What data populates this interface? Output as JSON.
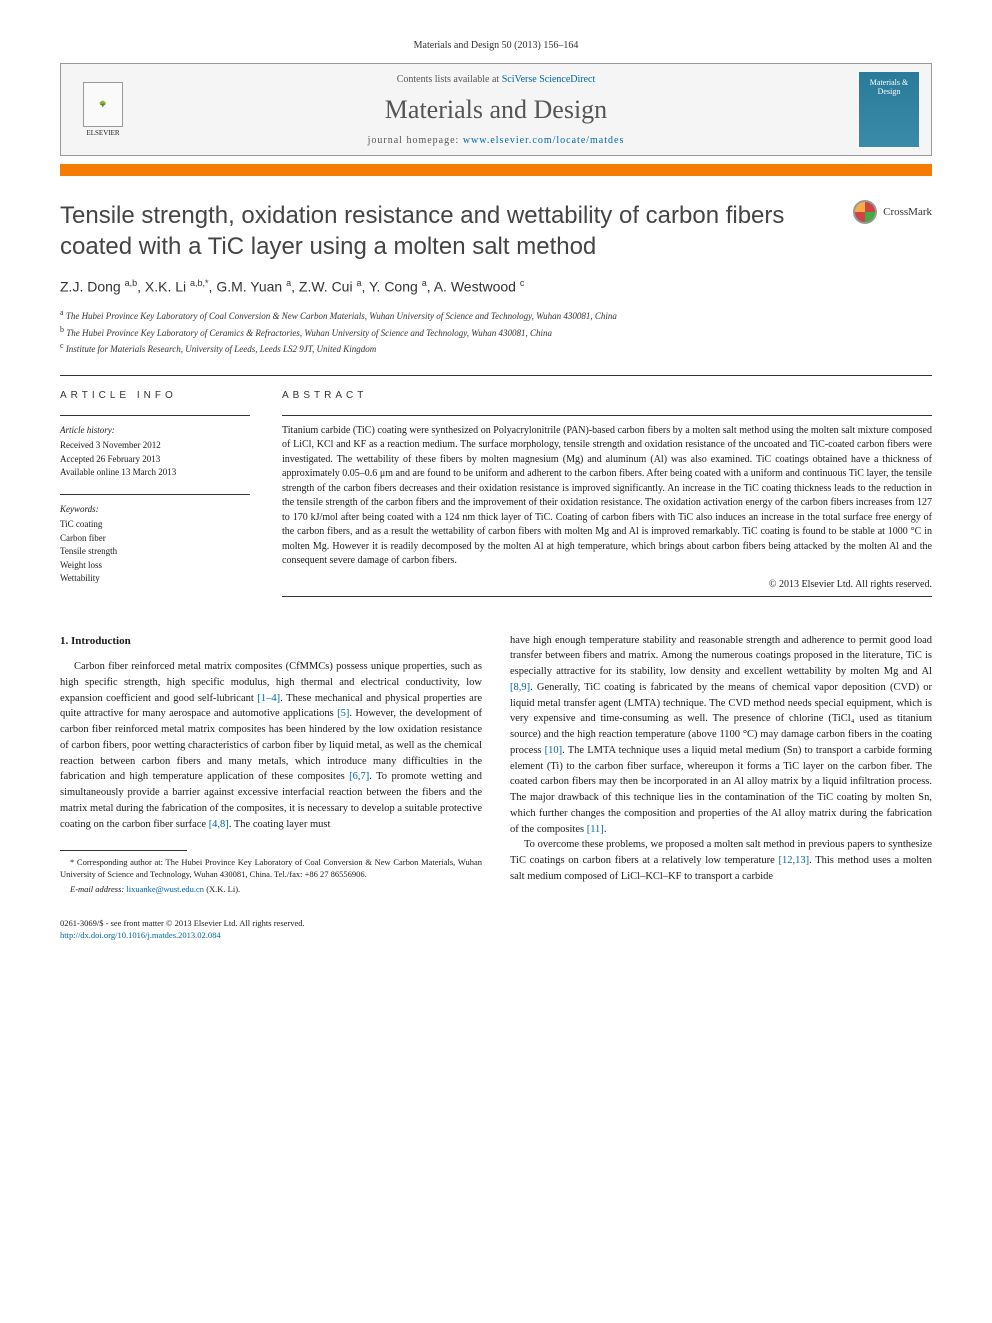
{
  "citation": "Materials and Design 50 (2013) 156–164",
  "header": {
    "contents_prefix": "Contents lists available at ",
    "contents_link": "SciVerse ScienceDirect",
    "journal_name": "Materials and Design",
    "homepage_prefix": "journal homepage: ",
    "homepage_url": "www.elsevier.com/locate/matdes",
    "publisher": "ELSEVIER",
    "cover_text": "Materials & Design"
  },
  "title": "Tensile strength, oxidation resistance and wettability of carbon fibers coated with a TiC layer using a molten salt method",
  "crossmark": "CrossMark",
  "authors_html": "Z.J. Dong <sup>a,b</sup>, X.K. Li <sup>a,b,*</sup>, G.M. Yuan <sup>a</sup>, Z.W. Cui <sup>a</sup>, Y. Cong <sup>a</sup>, A. Westwood <sup>c</sup>",
  "affiliations": {
    "a": "The Hubei Province Key Laboratory of Coal Conversion & New Carbon Materials, Wuhan University of Science and Technology, Wuhan 430081, China",
    "b": "The Hubei Province Key Laboratory of Ceramics & Refractories, Wuhan University of Science and Technology, Wuhan 430081, China",
    "c": "Institute for Materials Research, University of Leeds, Leeds LS2 9JT, United Kingdom"
  },
  "article_info": {
    "heading": "ARTICLE INFO",
    "history_label": "Article history:",
    "received": "Received 3 November 2012",
    "accepted": "Accepted 26 February 2013",
    "online": "Available online 13 March 2013",
    "keywords_label": "Keywords:",
    "keywords": [
      "TiC coating",
      "Carbon fiber",
      "Tensile strength",
      "Weight loss",
      "Wettability"
    ]
  },
  "abstract": {
    "heading": "ABSTRACT",
    "text": "Titanium carbide (TiC) coating were synthesized on Polyacrylonitrile (PAN)-based carbon fibers by a molten salt method using the molten salt mixture composed of LiCl, KCl and KF as a reaction medium. The surface morphology, tensile strength and oxidation resistance of the uncoated and TiC-coated carbon fibers were investigated. The wettability of these fibers by molten magnesium (Mg) and aluminum (Al) was also examined. TiC coatings obtained have a thickness of approximately 0.05–0.6 μm and are found to be uniform and adherent to the carbon fibers. After being coated with a uniform and continuous TiC layer, the tensile strength of the carbon fibers decreases and their oxidation resistance is improved significantly. An increase in the TiC coating thickness leads to the reduction in the tensile strength of the carbon fibers and the improvement of their oxidation resistance. The oxidation activation energy of the carbon fibers increases from 127 to 170 kJ/mol after being coated with a 124 nm thick layer of TiC. Coating of carbon fibers with TiC also induces an increase in the total surface free energy of the carbon fibers, and as a result the wettability of carbon fibers with molten Mg and Al is improved remarkably. TiC coating is found to be stable at 1000 °C in molten Mg. However it is readily decomposed by the molten Al at high temperature, which brings about carbon fibers being attacked by the molten Al and the consequent severe damage of carbon fibers.",
    "copyright": "© 2013 Elsevier Ltd. All rights reserved."
  },
  "body": {
    "section_number": "1.",
    "section_title": "Introduction",
    "col1_p1": "Carbon fiber reinforced metal matrix composites (CfMMCs) possess unique properties, such as high specific strength, high specific modulus, high thermal and electrical conductivity, low expansion coefficient and good self-lubricant [1–4]. These mechanical and physical properties are quite attractive for many aerospace and automotive applications [5]. However, the development of carbon fiber reinforced metal matrix composites has been hindered by the low oxidation resistance of carbon fibers, poor wetting characteristics of carbon fiber by liquid metal, as well as the chemical reaction between carbon fibers and many metals, which introduce many difficulties in the fabrication and high temperature application of these composites [6,7]. To promote wetting and simultaneously provide a barrier against excessive interfacial reaction between the fibers and the matrix metal during the fabrication of the composites, it is necessary to develop a suitable protective coating on the carbon fiber surface [4,8]. The coating layer must",
    "col2_p1": "have high enough temperature stability and reasonable strength and adherence to permit good load transfer between fibers and matrix. Among the numerous coatings proposed in the literature, TiC is especially attractive for its stability, low density and excellent wettability by molten Mg and Al [8,9]. Generally, TiC coating is fabricated by the means of chemical vapor deposition (CVD) or liquid metal transfer agent (LMTA) technique. The CVD method needs special equipment, which is very expensive and time-consuming as well. The presence of chlorine (TiCl₄ used as titanium source) and the high reaction temperature (above 1100 °C) may damage carbon fibers in the coating process [10]. The LMTA technique uses a liquid metal medium (Sn) to transport a carbide forming element (Ti) to the carbon fiber surface, whereupon it forms a TiC layer on the carbon fiber. The coated carbon fibers may then be incorporated in an Al alloy matrix by a liquid infiltration process. The major drawback of this technique lies in the contamination of the TiC coating by molten Sn, which further changes the composition and properties of the Al alloy matrix during the fabrication of the composites [11].",
    "col2_p2": "To overcome these problems, we proposed a molten salt method in previous papers to synthesize TiC coatings on carbon fibers at a relatively low temperature [12,13]. This method uses a molten salt medium composed of LiCl–KCl–KF to transport a carbide"
  },
  "footnote": {
    "corresponding": "* Corresponding author at: The Hubei Province Key Laboratory of Coal Conversion & New Carbon Materials, Wuhan University of Science and Technology, Wuhan 430081, China. Tel./fax: +86 27 86556906.",
    "email_label": "E-mail address:",
    "email": "lixuanke@wust.edu.cn",
    "email_suffix": "(X.K. Li)."
  },
  "footer": {
    "line1": "0261-3069/$ - see front matter © 2013 Elsevier Ltd. All rights reserved.",
    "doi": "http://dx.doi.org/10.1016/j.matdes.2013.02.084"
  },
  "colors": {
    "accent": "#f57c00",
    "link": "#0066aa",
    "header_bg": "#f5f5f5",
    "cover_bg": "#2a7a9a"
  }
}
